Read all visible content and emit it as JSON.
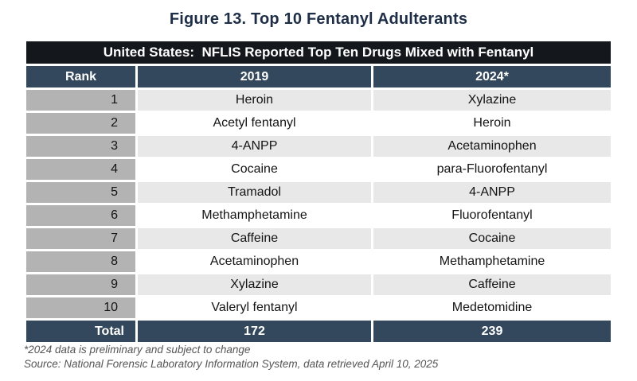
{
  "title": "Figure 13. Top 10 Fentanyl Adulterants",
  "table": {
    "banner": "United States:  NFLIS Reported Top Ten Drugs Mixed with Fentanyl",
    "columns": [
      "Rank",
      "2019",
      "2024*"
    ],
    "rows": [
      {
        "rank": "1",
        "y2019": "Heroin",
        "y2024": "Xylazine"
      },
      {
        "rank": "2",
        "y2019": "Acetyl fentanyl",
        "y2024": "Heroin"
      },
      {
        "rank": "3",
        "y2019": "4-ANPP",
        "y2024": "Acetaminophen"
      },
      {
        "rank": "4",
        "y2019": "Cocaine",
        "y2024": "para-Fluorofentanyl"
      },
      {
        "rank": "5",
        "y2019": "Tramadol",
        "y2024": "4-ANPP"
      },
      {
        "rank": "6",
        "y2019": "Methamphetamine",
        "y2024": "Fluorofentanyl"
      },
      {
        "rank": "7",
        "y2019": "Caffeine",
        "y2024": "Cocaine"
      },
      {
        "rank": "8",
        "y2019": "Acetaminophen",
        "y2024": "Methamphetamine"
      },
      {
        "rank": "9",
        "y2019": "Xylazine",
        "y2024": "Caffeine"
      },
      {
        "rank": "10",
        "y2019": "Valeryl fentanyl",
        "y2024": "Medetomidine"
      }
    ],
    "total": {
      "label": "Total",
      "y2019": "172",
      "y2024": "239"
    }
  },
  "footnotes": [
    "*2024 data is preliminary and subject to change",
    "Source: National Forensic Laboratory Information System, data retrieved April 10, 2025"
  ],
  "colors": {
    "title_text": "#1e2e47",
    "banner_bg": "#14181d",
    "header_bg": "#33485c",
    "rank_bg": "#b3b3b3",
    "shade_row_bg": "#e8e8e8",
    "header_text": "#ffffff"
  },
  "chart_data": {
    "type": "table",
    "title": "United States:  NFLIS Reported Top Ten Drugs Mixed with Fentanyl",
    "figure_title": "Figure 13. Top 10 Fentanyl Adulterants",
    "columns": [
      "Rank",
      "2019",
      "2024*"
    ],
    "rows": [
      [
        1,
        "Heroin",
        "Xylazine"
      ],
      [
        2,
        "Acetyl fentanyl",
        "Heroin"
      ],
      [
        3,
        "4-ANPP",
        "Acetaminophen"
      ],
      [
        4,
        "Cocaine",
        "para-Fluorofentanyl"
      ],
      [
        5,
        "Tramadol",
        "4-ANPP"
      ],
      [
        6,
        "Methamphetamine",
        "Fluorofentanyl"
      ],
      [
        7,
        "Caffeine",
        "Cocaine"
      ],
      [
        8,
        "Acetaminophen",
        "Methamphetamine"
      ],
      [
        9,
        "Xylazine",
        "Caffeine"
      ],
      [
        10,
        "Valeryl fentanyl",
        "Medetomidine"
      ]
    ],
    "totals": {
      "2019": 172,
      "2024*": 239
    },
    "notes": [
      "*2024 data is preliminary and subject to change",
      "Source: National Forensic Laboratory Information System, data retrieved April 10, 2025"
    ]
  }
}
